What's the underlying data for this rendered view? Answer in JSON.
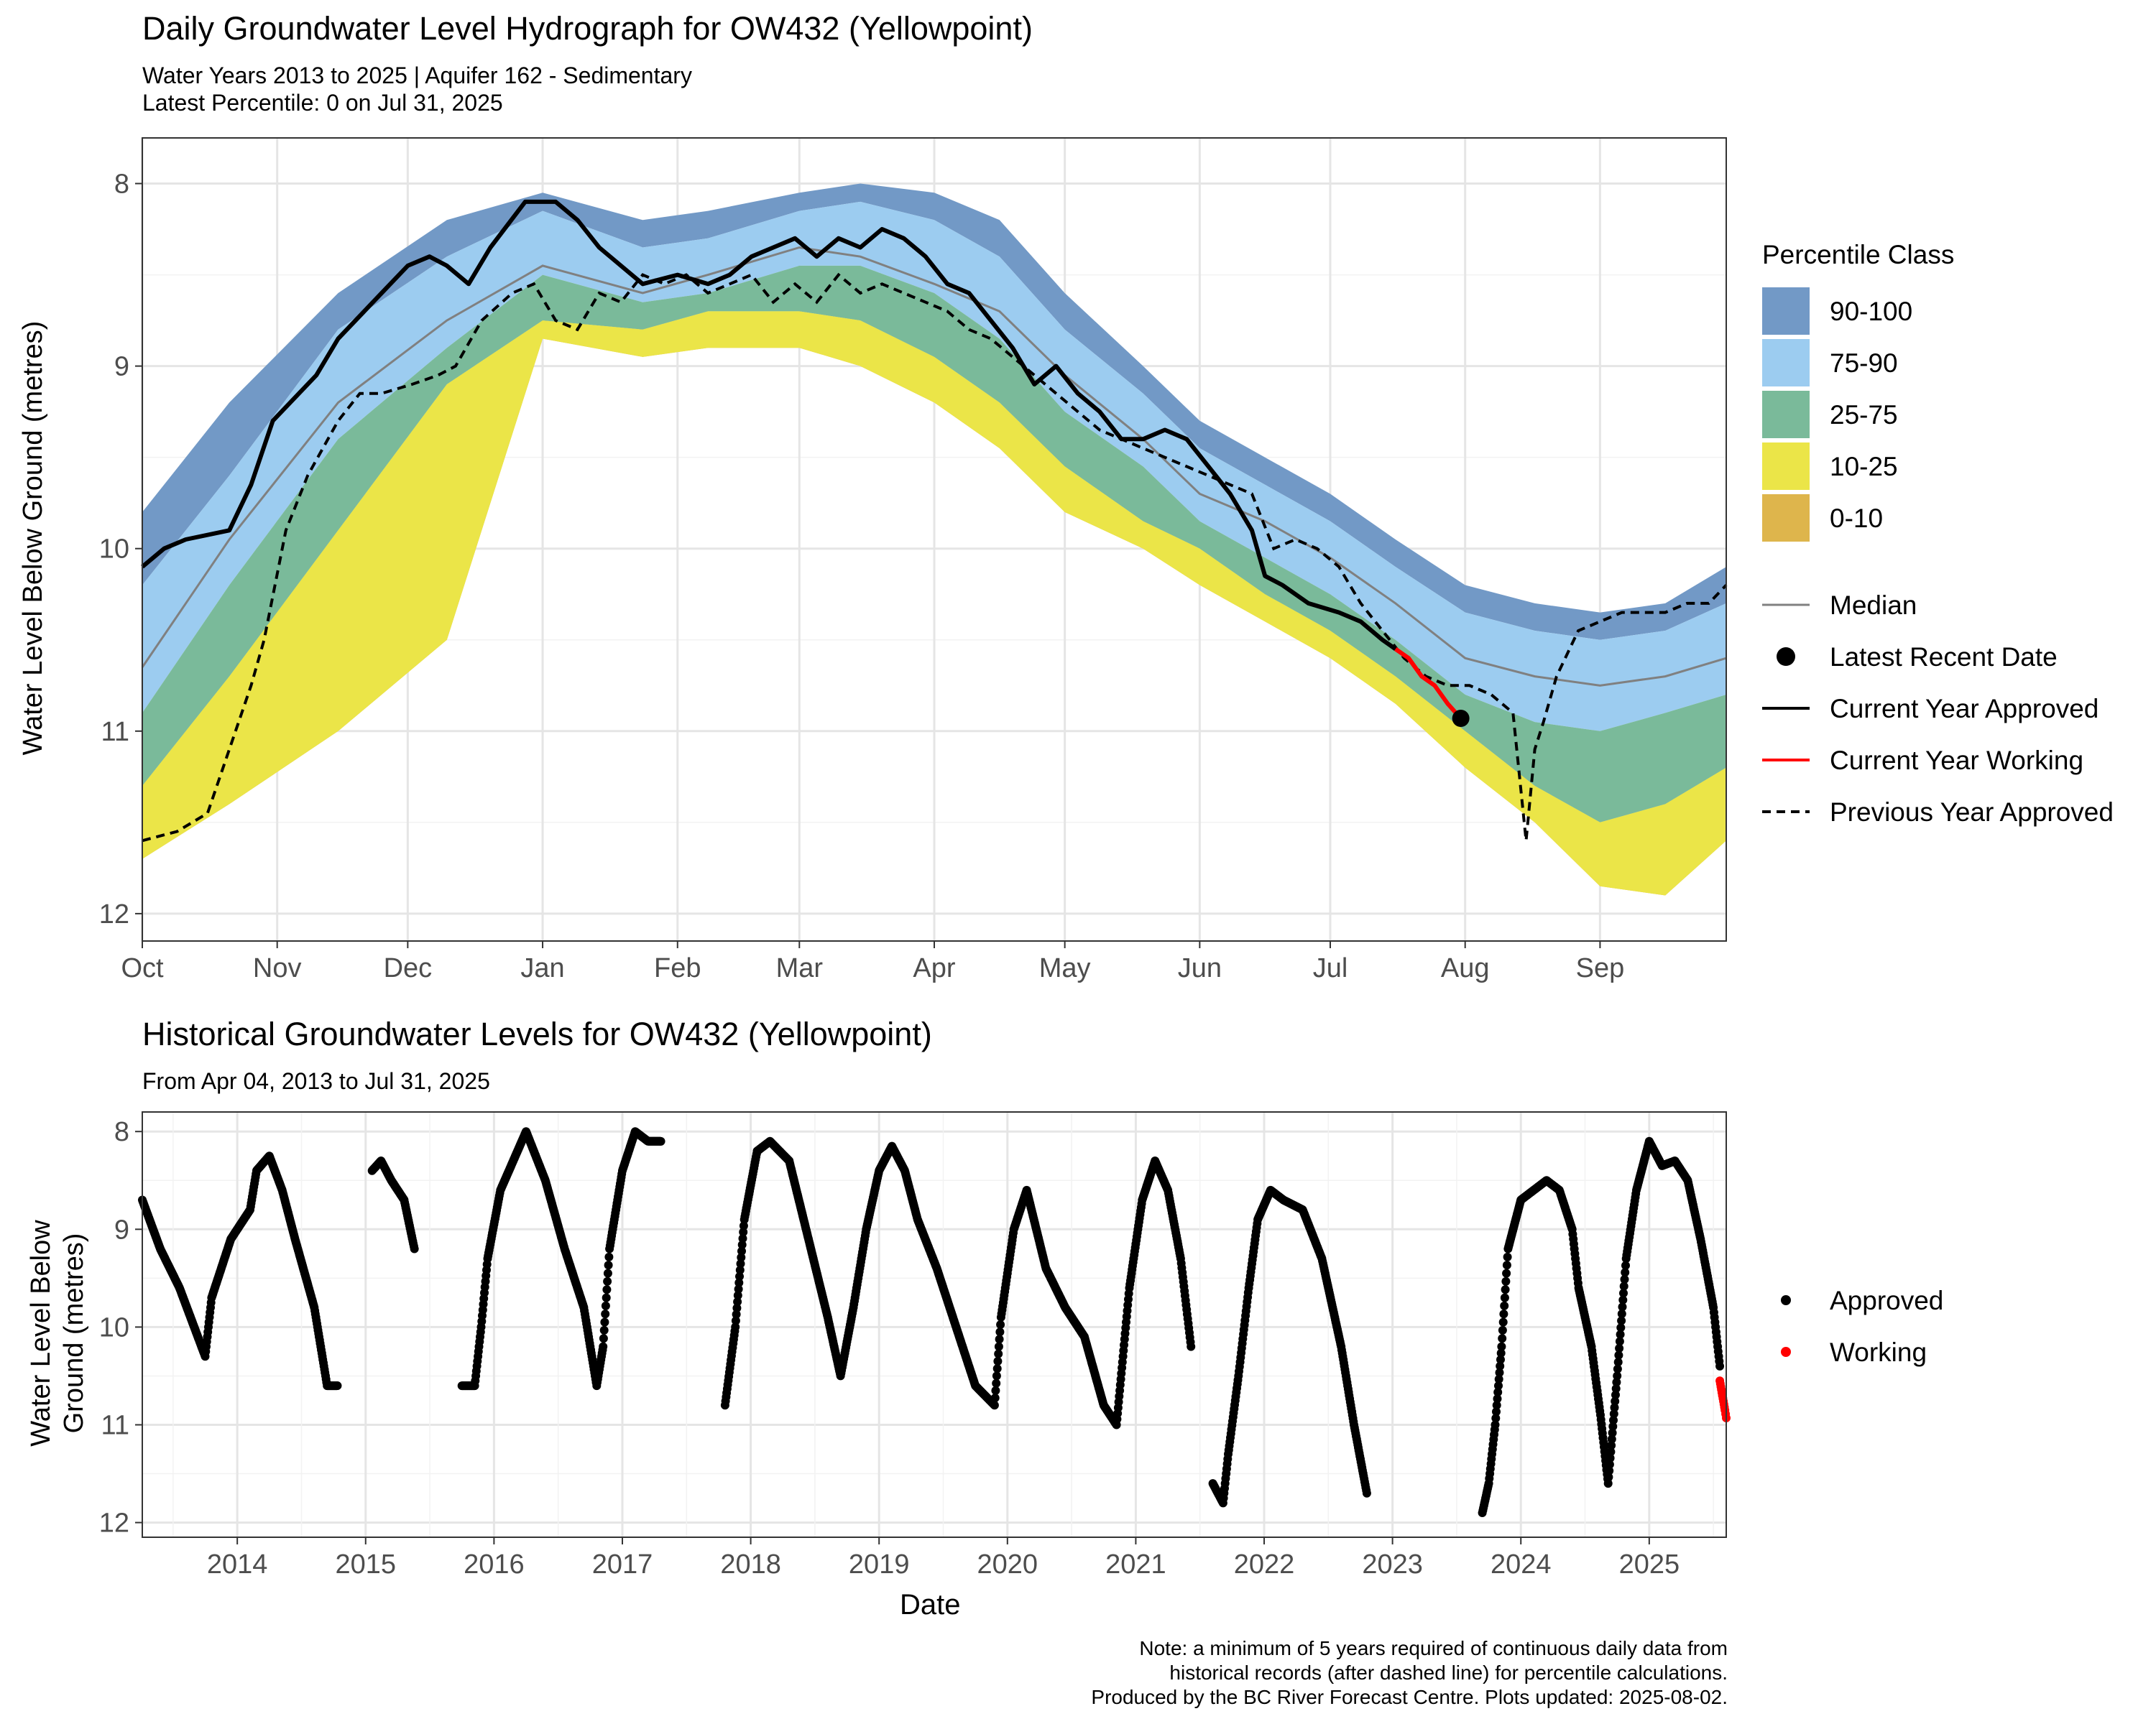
{
  "top_chart": {
    "title": "Daily Groundwater Level Hydrograph for OW432 (Yellowpoint)",
    "subtitle_line1": "Water Years 2013 to 2025 | Aquifer 162 - Sedimentary",
    "subtitle_line2": "Latest Percentile: 0 on Jul 31, 2025",
    "ylabel": "Water Level Below Ground (metres)",
    "legend_title": "Percentile Class",
    "legend_classes": [
      {
        "label": "90-100",
        "color": "#7299C6"
      },
      {
        "label": "75-90",
        "color": "#9CCCF0"
      },
      {
        "label": "25-75",
        "color": "#7ABA9A"
      },
      {
        "label": "10-25",
        "color": "#EBE548"
      },
      {
        "label": "0-10",
        "color": "#DEB54C"
      }
    ],
    "legend_lines": [
      {
        "label": "Median",
        "style": "median"
      },
      {
        "label": "Latest Recent Date",
        "style": "point"
      },
      {
        "label": "Current Year Approved",
        "style": "solid-black"
      },
      {
        "label": "Current Year Working",
        "style": "solid-red"
      },
      {
        "label": "Previous Year Approved",
        "style": "dashed-black"
      }
    ]
  },
  "bottom_chart": {
    "title": "Historical Groundwater Levels for OW432 (Yellowpoint)",
    "subtitle": "From Apr 04, 2013 to Jul 31, 2025",
    "ylabel_line1": "Water Level Below",
    "ylabel_line2": "Ground (metres)",
    "xlabel": "Date",
    "legend": [
      {
        "label": "Approved",
        "color": "#000000"
      },
      {
        "label": "Working",
        "color": "#FF0000"
      }
    ]
  },
  "note": {
    "line1": "Note: a minimum of 5 years required of continuous daily data from",
    "line2": "historical records (after dashed line) for percentile calculations.",
    "line3": "Produced by the BC River Forecast Centre. Plots updated: 2025-08-02."
  },
  "chart_data": [
    {
      "type": "area",
      "title": "Daily Groundwater Level Hydrograph for OW432 (Yellowpoint)",
      "xlabel": "",
      "ylabel": "Water Level Below Ground (metres)",
      "y_reversed": true,
      "ylim": [
        8,
        12
      ],
      "y_ticks": [
        8,
        9,
        10,
        11,
        12
      ],
      "x_ticks": [
        "Oct",
        "Nov",
        "Dec",
        "Jan",
        "Feb",
        "Mar",
        "Apr",
        "May",
        "Jun",
        "Jul",
        "Aug",
        "Sep"
      ],
      "x_tick_days": [
        0,
        31,
        61,
        92,
        123,
        151,
        182,
        212,
        243,
        273,
        304,
        335
      ],
      "x_range_days": [
        0,
        364
      ],
      "grid": true,
      "legend_position": "right",
      "day_x": [
        0,
        20,
        45,
        70,
        92,
        115,
        130,
        151,
        165,
        182,
        197,
        212,
        230,
        243,
        258,
        273,
        288,
        304,
        320,
        335,
        350,
        364
      ],
      "bands": {
        "b90": [
          9.8,
          9.2,
          8.6,
          8.2,
          8.05,
          8.2,
          8.15,
          8.05,
          8.0,
          8.05,
          8.2,
          8.6,
          9.0,
          9.3,
          9.5,
          9.7,
          9.95,
          10.2,
          10.3,
          10.35,
          10.3,
          10.1
        ],
        "b75": [
          10.2,
          9.6,
          8.8,
          8.4,
          8.15,
          8.35,
          8.3,
          8.15,
          8.1,
          8.2,
          8.4,
          8.8,
          9.15,
          9.45,
          9.65,
          9.85,
          10.1,
          10.35,
          10.45,
          10.5,
          10.45,
          10.3
        ],
        "b25": [
          10.9,
          10.2,
          9.4,
          8.9,
          8.5,
          8.65,
          8.6,
          8.45,
          8.45,
          8.6,
          8.85,
          9.25,
          9.55,
          9.85,
          10.05,
          10.25,
          10.5,
          10.8,
          10.95,
          11.0,
          10.9,
          10.8
        ],
        "b10": [
          11.3,
          10.7,
          9.9,
          9.1,
          8.75,
          8.8,
          8.7,
          8.7,
          8.75,
          8.95,
          9.2,
          9.55,
          9.85,
          10.0,
          10.25,
          10.45,
          10.7,
          11.0,
          11.3,
          11.5,
          11.4,
          11.2
        ],
        "b0": [
          11.7,
          11.4,
          11.0,
          10.5,
          8.85,
          8.95,
          8.9,
          8.9,
          9.0,
          9.2,
          9.45,
          9.8,
          10.0,
          10.2,
          10.4,
          10.6,
          10.85,
          11.2,
          11.5,
          11.85,
          11.9,
          11.6
        ]
      },
      "series": [
        {
          "name": "Median",
          "x": [
            0,
            20,
            45,
            70,
            92,
            115,
            130,
            151,
            165,
            182,
            197,
            212,
            230,
            243,
            258,
            273,
            288,
            304,
            320,
            335,
            350,
            364
          ],
          "values": [
            10.65,
            9.95,
            9.2,
            8.75,
            8.45,
            8.6,
            8.5,
            8.35,
            8.4,
            8.55,
            8.7,
            9.05,
            9.4,
            9.7,
            9.85,
            10.05,
            10.3,
            10.6,
            10.7,
            10.75,
            10.7,
            10.6
          ]
        },
        {
          "name": "Current Year Approved",
          "x": [
            0,
            5,
            10,
            20,
            25,
            30,
            40,
            45,
            55,
            61,
            66,
            70,
            75,
            80,
            88,
            95,
            100,
            105,
            115,
            123,
            130,
            135,
            140,
            145,
            150,
            155,
            160,
            165,
            170,
            175,
            180,
            185,
            190,
            195,
            200,
            205,
            210,
            215,
            220,
            225,
            230,
            235,
            240,
            245,
            250,
            255,
            258,
            262,
            268,
            275,
            280,
            285,
            288
          ],
          "values": [
            10.1,
            10.0,
            9.95,
            9.9,
            9.65,
            9.3,
            9.05,
            8.85,
            8.6,
            8.45,
            8.4,
            8.45,
            8.55,
            8.35,
            8.1,
            8.1,
            8.2,
            8.35,
            8.55,
            8.5,
            8.55,
            8.5,
            8.4,
            8.35,
            8.3,
            8.4,
            8.3,
            8.35,
            8.25,
            8.3,
            8.4,
            8.55,
            8.6,
            8.75,
            8.9,
            9.1,
            9.0,
            9.15,
            9.25,
            9.4,
            9.4,
            9.35,
            9.4,
            9.55,
            9.7,
            9.9,
            10.15,
            10.2,
            10.3,
            10.35,
            10.4,
            10.5,
            10.55
          ]
        },
        {
          "name": "Current Year Working",
          "x": [
            288,
            291,
            294,
            297,
            300,
            303
          ],
          "values": [
            10.55,
            10.6,
            10.7,
            10.75,
            10.85,
            10.93
          ]
        },
        {
          "name": "Latest Recent Date",
          "x": [
            303
          ],
          "values": [
            10.93
          ]
        },
        {
          "name": "Previous Year Approved",
          "x": [
            0,
            8,
            15,
            20,
            25,
            28,
            33,
            38,
            45,
            50,
            55,
            62,
            68,
            72,
            78,
            85,
            90,
            95,
            100,
            105,
            110,
            115,
            120,
            125,
            130,
            135,
            140,
            145,
            150,
            155,
            160,
            165,
            170,
            175,
            180,
            185,
            190,
            195,
            200,
            205,
            210,
            215,
            220,
            225,
            230,
            235,
            240,
            245,
            250,
            255,
            260,
            265,
            270,
            275,
            280,
            285,
            290,
            295,
            300,
            305,
            310,
            315,
            318,
            320,
            322,
            325,
            330,
            335,
            340,
            345,
            350,
            355,
            360,
            364
          ],
          "values": [
            11.6,
            11.55,
            11.45,
            11.1,
            10.75,
            10.5,
            9.9,
            9.6,
            9.3,
            9.15,
            9.15,
            9.1,
            9.05,
            9.0,
            8.75,
            8.6,
            8.55,
            8.75,
            8.8,
            8.6,
            8.65,
            8.5,
            8.55,
            8.5,
            8.6,
            8.55,
            8.5,
            8.65,
            8.55,
            8.65,
            8.5,
            8.6,
            8.55,
            8.6,
            8.65,
            8.7,
            8.8,
            8.85,
            8.95,
            9.05,
            9.15,
            9.25,
            9.35,
            9.4,
            9.45,
            9.5,
            9.55,
            9.6,
            9.65,
            9.7,
            10.0,
            9.95,
            10.0,
            10.1,
            10.3,
            10.45,
            10.6,
            10.7,
            10.75,
            10.75,
            10.8,
            10.9,
            11.6,
            11.1,
            10.95,
            10.7,
            10.45,
            10.4,
            10.35,
            10.35,
            10.35,
            10.3,
            10.3,
            10.2
          ]
        }
      ]
    },
    {
      "type": "scatter",
      "title": "Historical Groundwater Levels for OW432 (Yellowpoint)",
      "subtitle": "From Apr 04, 2013 to Jul 31, 2025",
      "xlabel": "Date",
      "ylabel": "Water Level Below Ground (metres)",
      "y_reversed": true,
      "ylim": [
        8,
        12
      ],
      "y_ticks": [
        8,
        9,
        10,
        11,
        12
      ],
      "x_ticks": [
        "2014",
        "2015",
        "2016",
        "2017",
        "2018",
        "2019",
        "2020",
        "2021",
        "2022",
        "2023",
        "2024",
        "2025"
      ],
      "x_range_years": [
        2013.26,
        2025.6
      ],
      "legend_position": "right",
      "series": [
        {
          "name": "Approved",
          "segments": [
            {
              "x": [
                2013.26,
                2013.4,
                2013.55,
                2013.75,
                2013.8,
                2013.95,
                2014.1,
                2014.15,
                2014.25,
                2014.35,
                2014.45,
                2014.6,
                2014.7,
                2014.78
              ],
              "values": [
                8.7,
                9.2,
                9.6,
                10.3,
                9.7,
                9.1,
                8.8,
                8.4,
                8.25,
                8.6,
                9.1,
                9.8,
                10.6,
                10.6
              ]
            },
            {
              "x": [
                2015.05,
                2015.12,
                2015.2,
                2015.3,
                2015.38
              ],
              "values": [
                8.4,
                8.3,
                8.5,
                8.7,
                9.2
              ]
            },
            {
              "x": [
                2015.75,
                2015.85,
                2015.9,
                2015.95,
                2016.05,
                2016.15,
                2016.25,
                2016.4,
                2016.55,
                2016.7,
                2016.8,
                2016.85,
                2016.9,
                2017.0,
                2017.1,
                2017.2,
                2017.3
              ],
              "values": [
                10.6,
                10.6,
                10.0,
                9.3,
                8.6,
                8.3,
                8.0,
                8.5,
                9.2,
                9.8,
                10.6,
                10.2,
                9.2,
                8.4,
                8.0,
                8.1,
                8.1
              ]
            },
            {
              "x": [
                2017.8,
                2017.88,
                2017.95,
                2018.05,
                2018.15,
                2018.3,
                2018.45,
                2018.6,
                2018.7,
                2018.8,
                2018.9,
                2019.0,
                2019.1,
                2019.2,
                2019.3,
                2019.45,
                2019.6,
                2019.75,
                2019.9,
                2019.95,
                2020.05,
                2020.15,
                2020.3,
                2020.45,
                2020.6,
                2020.75,
                2020.85,
                2020.95,
                2021.05,
                2021.15,
                2021.25,
                2021.35,
                2021.43
              ],
              "values": [
                10.8,
                10.0,
                8.9,
                8.2,
                8.1,
                8.3,
                9.1,
                9.9,
                10.5,
                9.8,
                9.0,
                8.4,
                8.15,
                8.4,
                8.9,
                9.4,
                10.0,
                10.6,
                10.8,
                9.9,
                9.0,
                8.6,
                9.4,
                9.8,
                10.1,
                10.8,
                11.0,
                9.6,
                8.7,
                8.3,
                8.6,
                9.3,
                10.2
              ]
            },
            {
              "x": [
                2021.6,
                2021.68,
                2021.72,
                2021.8,
                2021.88,
                2021.95,
                2022.05,
                2022.15,
                2022.3,
                2022.45,
                2022.6,
                2022.7,
                2022.8
              ],
              "values": [
                11.6,
                11.8,
                11.3,
                10.5,
                9.6,
                8.9,
                8.6,
                8.7,
                8.8,
                9.3,
                10.2,
                11.0,
                11.7
              ]
            },
            {
              "x": [
                2023.7,
                2023.75,
                2023.8,
                2023.85,
                2023.9,
                2024.0,
                2024.1,
                2024.2,
                2024.3,
                2024.4,
                2024.45,
                2024.55,
                2024.62,
                2024.68,
                2024.75,
                2024.82,
                2024.9,
                2025.0,
                2025.1,
                2025.2,
                2025.3,
                2025.4,
                2025.5,
                2025.55
              ],
              "values": [
                11.9,
                11.6,
                11.0,
                10.2,
                9.2,
                8.7,
                8.6,
                8.5,
                8.6,
                9.0,
                9.6,
                10.2,
                10.9,
                11.6,
                10.5,
                9.3,
                8.6,
                8.1,
                8.35,
                8.3,
                8.5,
                9.1,
                9.8,
                10.4
              ]
            }
          ]
        },
        {
          "name": "Working",
          "segments": [
            {
              "x": [
                2025.55,
                2025.57,
                2025.59,
                2025.6
              ],
              "values": [
                10.55,
                10.7,
                10.85,
                10.93
              ]
            }
          ]
        }
      ]
    }
  ]
}
